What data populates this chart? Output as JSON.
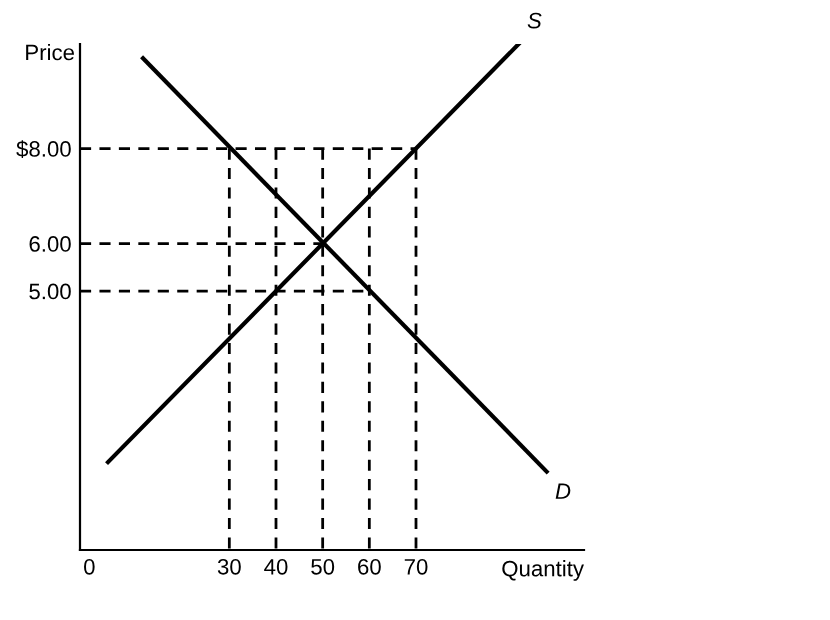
{
  "chart_data": {
    "type": "line",
    "xlabel": "Quantity",
    "ylabel": "Price",
    "xlim": [
      -2,
      106
    ],
    "ylim": [
      -0.45,
      10.2
    ],
    "xticks": [
      {
        "value": 0,
        "label": "0"
      },
      30,
      40,
      50,
      60,
      70
    ],
    "yticks": [
      {
        "value": 5,
        "label": "5.00"
      },
      {
        "value": 6,
        "label": "6.00"
      },
      {
        "value": 8,
        "label": "$8.00"
      }
    ],
    "grid": false,
    "legend": false,
    "marker": "none",
    "series": [
      {
        "name": "S",
        "color": "#000000",
        "line_style": "solid",
        "x": [
          4,
          92
        ],
        "values": [
          1.4,
          10.2
        ]
      },
      {
        "name": "D",
        "color": "#000000",
        "line_style": "solid",
        "x": [
          11.5,
          98
        ],
        "values": [
          9.9,
          1.2
        ]
      },
      {
        "color": "#000000",
        "line_style": "dashed",
        "x": [
          -2,
          70
        ],
        "values": [
          8,
          8
        ]
      },
      {
        "color": "#000000",
        "line_style": "dashed",
        "x": [
          -2,
          50
        ],
        "values": [
          6,
          6
        ]
      },
      {
        "color": "#000000",
        "line_style": "dashed",
        "x": [
          -2,
          60
        ],
        "values": [
          5,
          5
        ]
      },
      {
        "color": "#000000",
        "line_style": "dashed",
        "x": [
          30,
          30
        ],
        "values": [
          8,
          -0.45
        ]
      },
      {
        "color": "#000000",
        "line_style": "dashed",
        "x": [
          40,
          40
        ],
        "values": [
          8,
          -0.45
        ]
      },
      {
        "color": "#000000",
        "line_style": "dashed",
        "x": [
          50,
          50
        ],
        "values": [
          8,
          -0.45
        ]
      },
      {
        "color": "#000000",
        "line_style": "dashed",
        "x": [
          60,
          60
        ],
        "values": [
          8,
          -0.45
        ]
      },
      {
        "color": "#000000",
        "line_style": "dashed",
        "x": [
          70,
          70
        ],
        "values": [
          8,
          -0.45
        ]
      }
    ]
  }
}
